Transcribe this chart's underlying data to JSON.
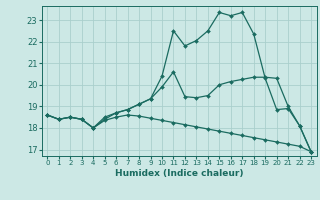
{
  "xlabel": "Humidex (Indice chaleur)",
  "bg_color": "#cce8e5",
  "line_color": "#1a6b60",
  "grid_color": "#aacfcc",
  "xlim": [
    -0.5,
    23.5
  ],
  "ylim": [
    16.7,
    23.65
  ],
  "xticks": [
    0,
    1,
    2,
    3,
    4,
    5,
    6,
    7,
    8,
    9,
    10,
    11,
    12,
    13,
    14,
    15,
    16,
    17,
    18,
    19,
    20,
    21,
    22,
    23
  ],
  "yticks": [
    17,
    18,
    19,
    20,
    21,
    22,
    23
  ],
  "line1_x": [
    0,
    1,
    2,
    3,
    4,
    5,
    6,
    7,
    8,
    9,
    10,
    11,
    12,
    13,
    14,
    15,
    16,
    17,
    18,
    19,
    20,
    21,
    22,
    23
  ],
  "line1_y": [
    18.6,
    18.4,
    18.5,
    18.4,
    18.0,
    18.4,
    18.7,
    18.85,
    19.1,
    19.35,
    20.4,
    22.5,
    21.8,
    22.05,
    22.5,
    23.35,
    23.2,
    23.35,
    22.35,
    20.3,
    18.85,
    18.9,
    18.1,
    16.9
  ],
  "line2_x": [
    0,
    1,
    2,
    3,
    4,
    5,
    6,
    7,
    8,
    9,
    10,
    11,
    12,
    13,
    14,
    15,
    16,
    17,
    18,
    19,
    20,
    21,
    22,
    23
  ],
  "line2_y": [
    18.6,
    18.4,
    18.5,
    18.4,
    18.0,
    18.5,
    18.7,
    18.85,
    19.1,
    19.35,
    19.9,
    20.6,
    19.45,
    19.4,
    19.5,
    20.0,
    20.15,
    20.25,
    20.35,
    20.35,
    20.3,
    19.0,
    18.1,
    16.9
  ],
  "line3_x": [
    0,
    1,
    2,
    3,
    4,
    5,
    6,
    7,
    8,
    9,
    10,
    11,
    12,
    13,
    14,
    15,
    16,
    17,
    18,
    19,
    20,
    21,
    22,
    23
  ],
  "line3_y": [
    18.6,
    18.4,
    18.5,
    18.4,
    18.0,
    18.35,
    18.5,
    18.6,
    18.55,
    18.45,
    18.35,
    18.25,
    18.15,
    18.05,
    17.95,
    17.85,
    17.75,
    17.65,
    17.55,
    17.45,
    17.35,
    17.25,
    17.15,
    16.9
  ]
}
